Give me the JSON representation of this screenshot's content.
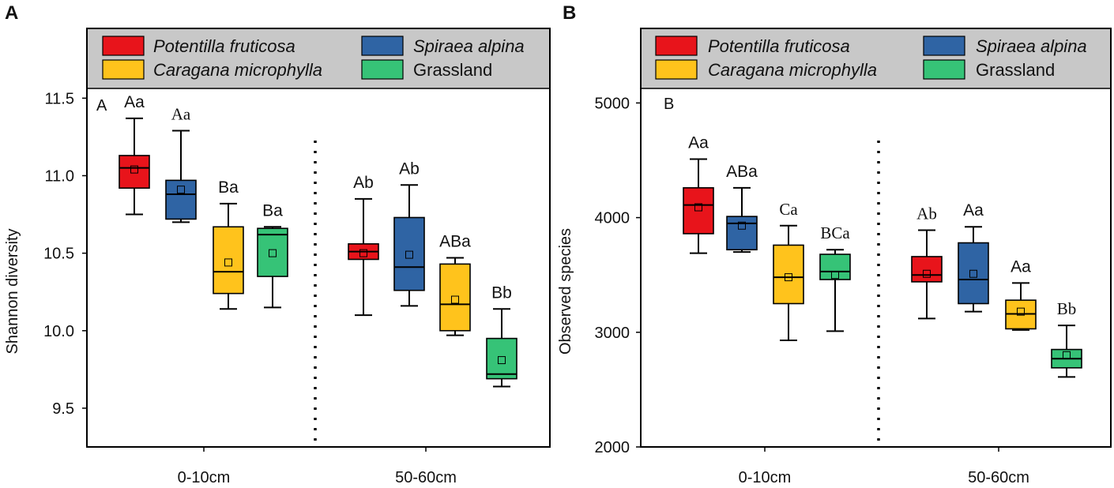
{
  "colors": {
    "red": "#e8141b",
    "blue": "#2f64a4",
    "yellow": "#ffc31c",
    "green": "#36c377",
    "legend_bg": "#c8c8c8"
  },
  "chart_data": [
    {
      "type": "box",
      "panel_label": "A",
      "inner_label": "A",
      "ylabel": "Shannon diversity",
      "ylim": [
        9.25,
        11.95
      ],
      "yticks": [
        9.5,
        10.0,
        10.5,
        11.0,
        11.5
      ],
      "ytick_labels": [
        "9.5",
        "10.0",
        "10.5",
        "11.0",
        "11.5"
      ],
      "categories": [
        "0-10cm",
        "50-60cm"
      ],
      "legend": [
        {
          "name": "Potentilla fruticosa",
          "color": "red",
          "italic": true
        },
        {
          "name": "Spiraea alpina",
          "color": "blue",
          "italic": true
        },
        {
          "name": "Caragana microphylla",
          "color": "yellow",
          "italic": true
        },
        {
          "name": "Grassland",
          "color": "green",
          "italic": false
        }
      ],
      "series": [
        {
          "name": "Potentilla fruticosa",
          "color": "red",
          "boxes": [
            {
              "min": 10.75,
              "q1": 10.92,
              "median": 11.05,
              "q3": 11.13,
              "max": 11.37,
              "mean": 11.04,
              "label": "Aa",
              "serif": false
            },
            {
              "min": 10.1,
              "q1": 10.46,
              "median": 10.51,
              "q3": 10.56,
              "max": 10.85,
              "mean": 10.5,
              "label": "Ab",
              "serif": false
            }
          ]
        },
        {
          "name": "Spiraea alpina",
          "color": "blue",
          "boxes": [
            {
              "min": 10.7,
              "q1": 10.72,
              "median": 10.88,
              "q3": 10.97,
              "max": 11.29,
              "mean": 10.91,
              "label": "Aa",
              "serif": true
            },
            {
              "min": 10.16,
              "q1": 10.26,
              "median": 10.41,
              "q3": 10.73,
              "max": 10.94,
              "mean": 10.49,
              "label": "Ab",
              "serif": false
            }
          ]
        },
        {
          "name": "Caragana microphylla",
          "color": "yellow",
          "boxes": [
            {
              "min": 10.14,
              "q1": 10.24,
              "median": 10.38,
              "q3": 10.67,
              "max": 10.82,
              "mean": 10.44,
              "label": "Ba",
              "serif": false
            },
            {
              "min": 9.97,
              "q1": 10.0,
              "median": 10.17,
              "q3": 10.43,
              "max": 10.47,
              "mean": 10.2,
              "label": "ABa",
              "serif": false
            }
          ]
        },
        {
          "name": "Grassland",
          "color": "green",
          "boxes": [
            {
              "min": 10.15,
              "q1": 10.35,
              "median": 10.62,
              "q3": 10.66,
              "max": 10.67,
              "mean": 10.5,
              "label": "Ba",
              "serif": false
            },
            {
              "min": 9.64,
              "q1": 9.69,
              "median": 9.72,
              "q3": 9.95,
              "max": 10.14,
              "mean": 9.81,
              "label": "Bb",
              "serif": false
            }
          ]
        }
      ]
    },
    {
      "type": "box",
      "panel_label": "B",
      "inner_label": "B",
      "ylabel": "Observed species",
      "ylim": [
        2000,
        5650
      ],
      "yticks": [
        2000,
        3000,
        4000,
        5000
      ],
      "ytick_labels": [
        "2000",
        "3000",
        "4000",
        "5000"
      ],
      "categories": [
        "0-10cm",
        "50-60cm"
      ],
      "legend": [
        {
          "name": "Potentilla fruticosa",
          "color": "red",
          "italic": true
        },
        {
          "name": "Spiraea alpina",
          "color": "blue",
          "italic": true
        },
        {
          "name": "Caragana microphylla",
          "color": "yellow",
          "italic": true
        },
        {
          "name": "Grassland",
          "color": "green",
          "italic": false
        }
      ],
      "series": [
        {
          "name": "Potentilla fruticosa",
          "color": "red",
          "boxes": [
            {
              "min": 3690,
              "q1": 3860,
              "median": 4110,
              "q3": 4260,
              "max": 4510,
              "mean": 4090,
              "label": "Aa",
              "serif": false
            },
            {
              "min": 3120,
              "q1": 3440,
              "median": 3500,
              "q3": 3660,
              "max": 3890,
              "mean": 3510,
              "label": "Ab",
              "serif": true
            }
          ]
        },
        {
          "name": "Spiraea alpina",
          "color": "blue",
          "boxes": [
            {
              "min": 3700,
              "q1": 3720,
              "median": 3950,
              "q3": 4010,
              "max": 4260,
              "mean": 3930,
              "label": "ABa",
              "serif": false
            },
            {
              "min": 3180,
              "q1": 3250,
              "median": 3460,
              "q3": 3780,
              "max": 3920,
              "mean": 3510,
              "label": "Aa",
              "serif": false
            }
          ]
        },
        {
          "name": "Caragana microphylla",
          "color": "yellow",
          "boxes": [
            {
              "min": 2930,
              "q1": 3250,
              "median": 3480,
              "q3": 3760,
              "max": 3930,
              "mean": 3480,
              "label": "Ca",
              "serif": true
            },
            {
              "min": 3020,
              "q1": 3030,
              "median": 3160,
              "q3": 3280,
              "max": 3430,
              "mean": 3180,
              "label": "Aa",
              "serif": false
            }
          ]
        },
        {
          "name": "Grassland",
          "color": "green",
          "boxes": [
            {
              "min": 3010,
              "q1": 3460,
              "median": 3530,
              "q3": 3680,
              "max": 3720,
              "mean": 3500,
              "label": "BCa",
              "serif": true
            },
            {
              "min": 2610,
              "q1": 2690,
              "median": 2770,
              "q3": 2850,
              "max": 3060,
              "mean": 2800,
              "label": "Bb",
              "serif": true
            }
          ]
        }
      ]
    }
  ]
}
